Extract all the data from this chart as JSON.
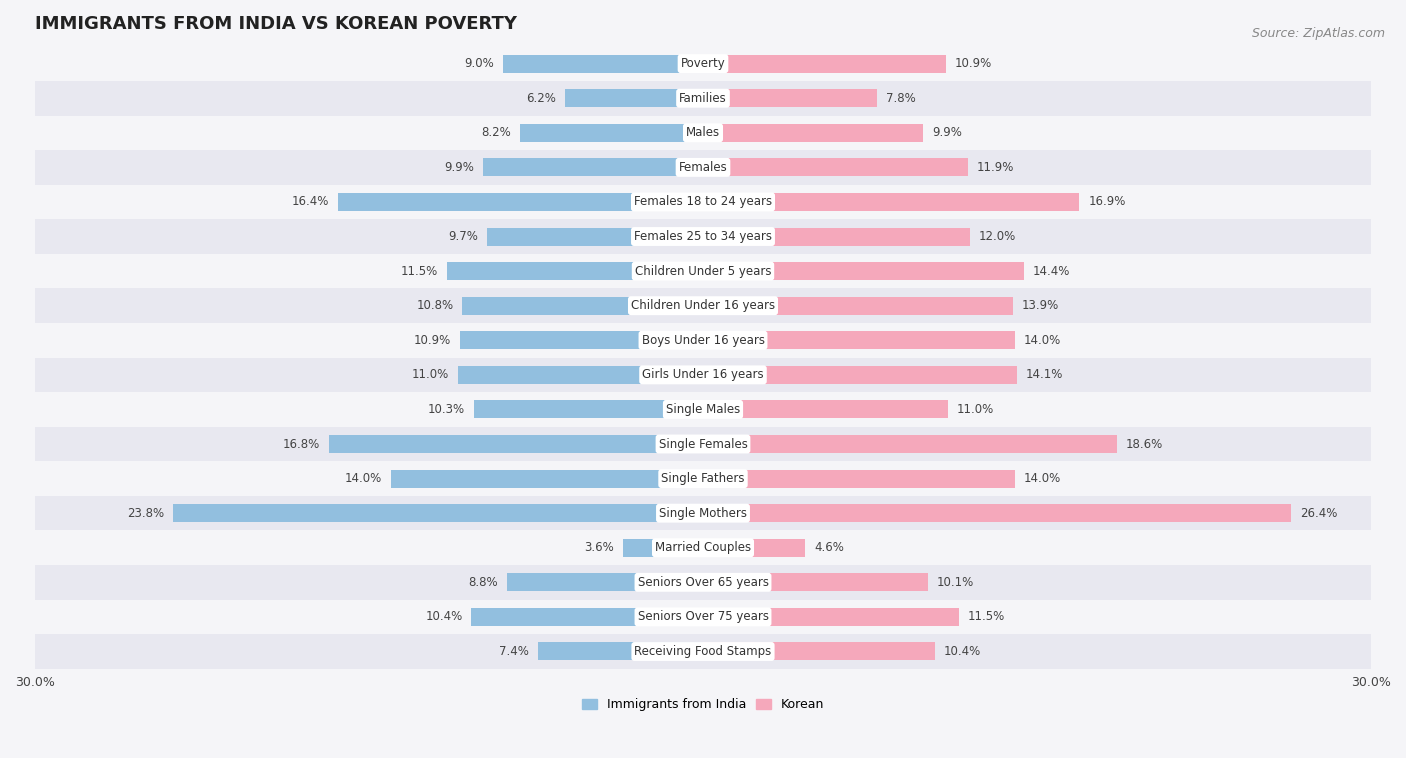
{
  "title": "IMMIGRANTS FROM INDIA VS KOREAN POVERTY",
  "source": "Source: ZipAtlas.com",
  "categories": [
    "Poverty",
    "Families",
    "Males",
    "Females",
    "Females 18 to 24 years",
    "Females 25 to 34 years",
    "Children Under 5 years",
    "Children Under 16 years",
    "Boys Under 16 years",
    "Girls Under 16 years",
    "Single Males",
    "Single Females",
    "Single Fathers",
    "Single Mothers",
    "Married Couples",
    "Seniors Over 65 years",
    "Seniors Over 75 years",
    "Receiving Food Stamps"
  ],
  "india_values": [
    9.0,
    6.2,
    8.2,
    9.9,
    16.4,
    9.7,
    11.5,
    10.8,
    10.9,
    11.0,
    10.3,
    16.8,
    14.0,
    23.8,
    3.6,
    8.8,
    10.4,
    7.4
  ],
  "korean_values": [
    10.9,
    7.8,
    9.9,
    11.9,
    16.9,
    12.0,
    14.4,
    13.9,
    14.0,
    14.1,
    11.0,
    18.6,
    14.0,
    26.4,
    4.6,
    10.1,
    11.5,
    10.4
  ],
  "india_color": "#92bfdf",
  "korean_color": "#f5a8bb",
  "row_color_even": "#f5f5f8",
  "row_color_odd": "#e8e8f0",
  "label_bg_color": "#ffffff",
  "xlim": 30.0,
  "title_fontsize": 13,
  "label_fontsize": 8.5,
  "tick_fontsize": 9,
  "source_fontsize": 9
}
